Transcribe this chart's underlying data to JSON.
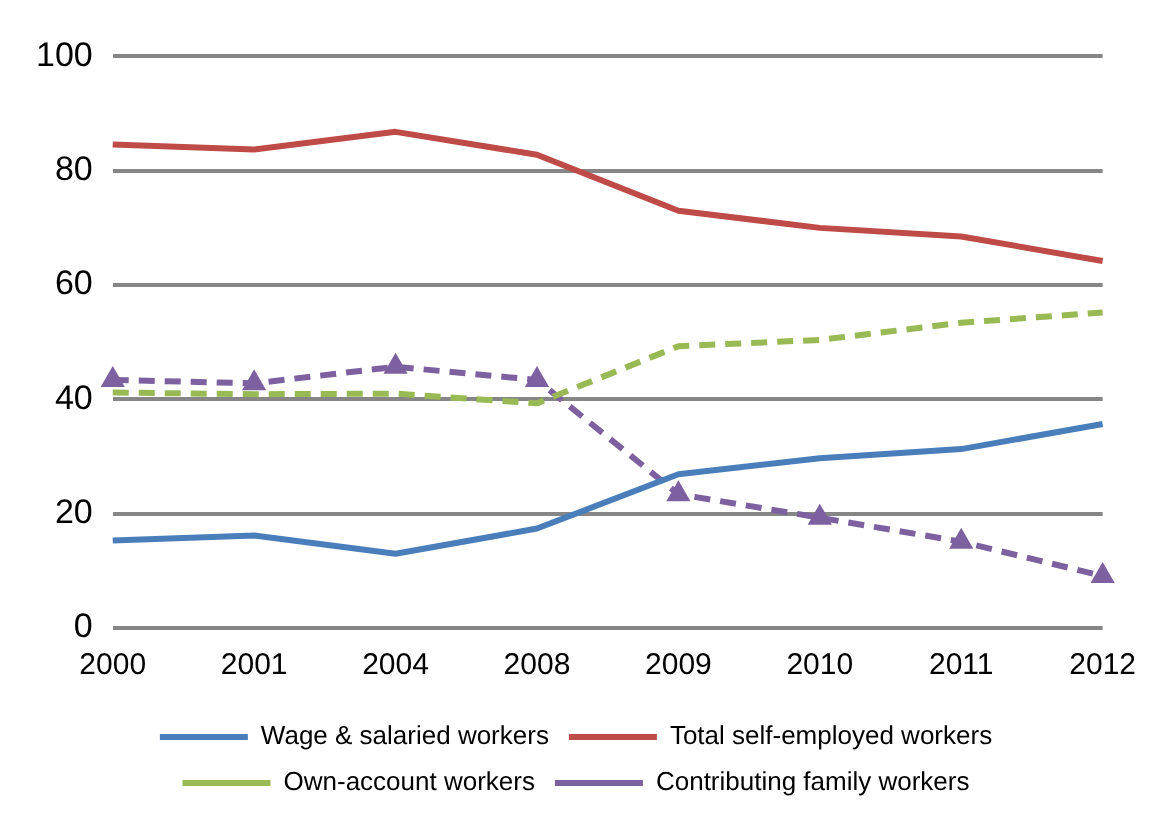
{
  "chart_data": {
    "type": "line",
    "categories": [
      "2000",
      "2001",
      "2004",
      "2008",
      "2009",
      "2010",
      "2011",
      "2012"
    ],
    "series": [
      {
        "name": "Wage & salaried workers",
        "color": "#4a7ebb",
        "values": [
          15.3,
          16.2,
          13.0,
          17.4,
          26.9,
          29.7,
          31.3,
          35.7
        ],
        "line_style": "solid",
        "marker": "none"
      },
      {
        "name": "Total self-employed workers",
        "color": "#be4b48",
        "values": [
          84.6,
          83.7,
          86.8,
          82.8,
          73.0,
          70.0,
          68.5,
          64.2
        ],
        "line_style": "solid",
        "marker": "none"
      },
      {
        "name": "Own-account workers",
        "color": "#98b954",
        "values": [
          41.2,
          40.9,
          41.0,
          39.3,
          49.3,
          50.4,
          53.4,
          55.2
        ],
        "line_style": "dashed",
        "marker": "none"
      },
      {
        "name": "Contributing family workers",
        "color": "#7d60a0",
        "values": [
          43.4,
          42.8,
          45.7,
          43.4,
          23.4,
          19.3,
          15.1,
          9.1
        ],
        "line_style": "dashed",
        "marker": "triangle"
      }
    ],
    "ylim": [
      0,
      100
    ],
    "yticks": [
      0,
      20,
      40,
      60,
      80,
      100
    ],
    "grid": "y",
    "legend": "bottom"
  }
}
